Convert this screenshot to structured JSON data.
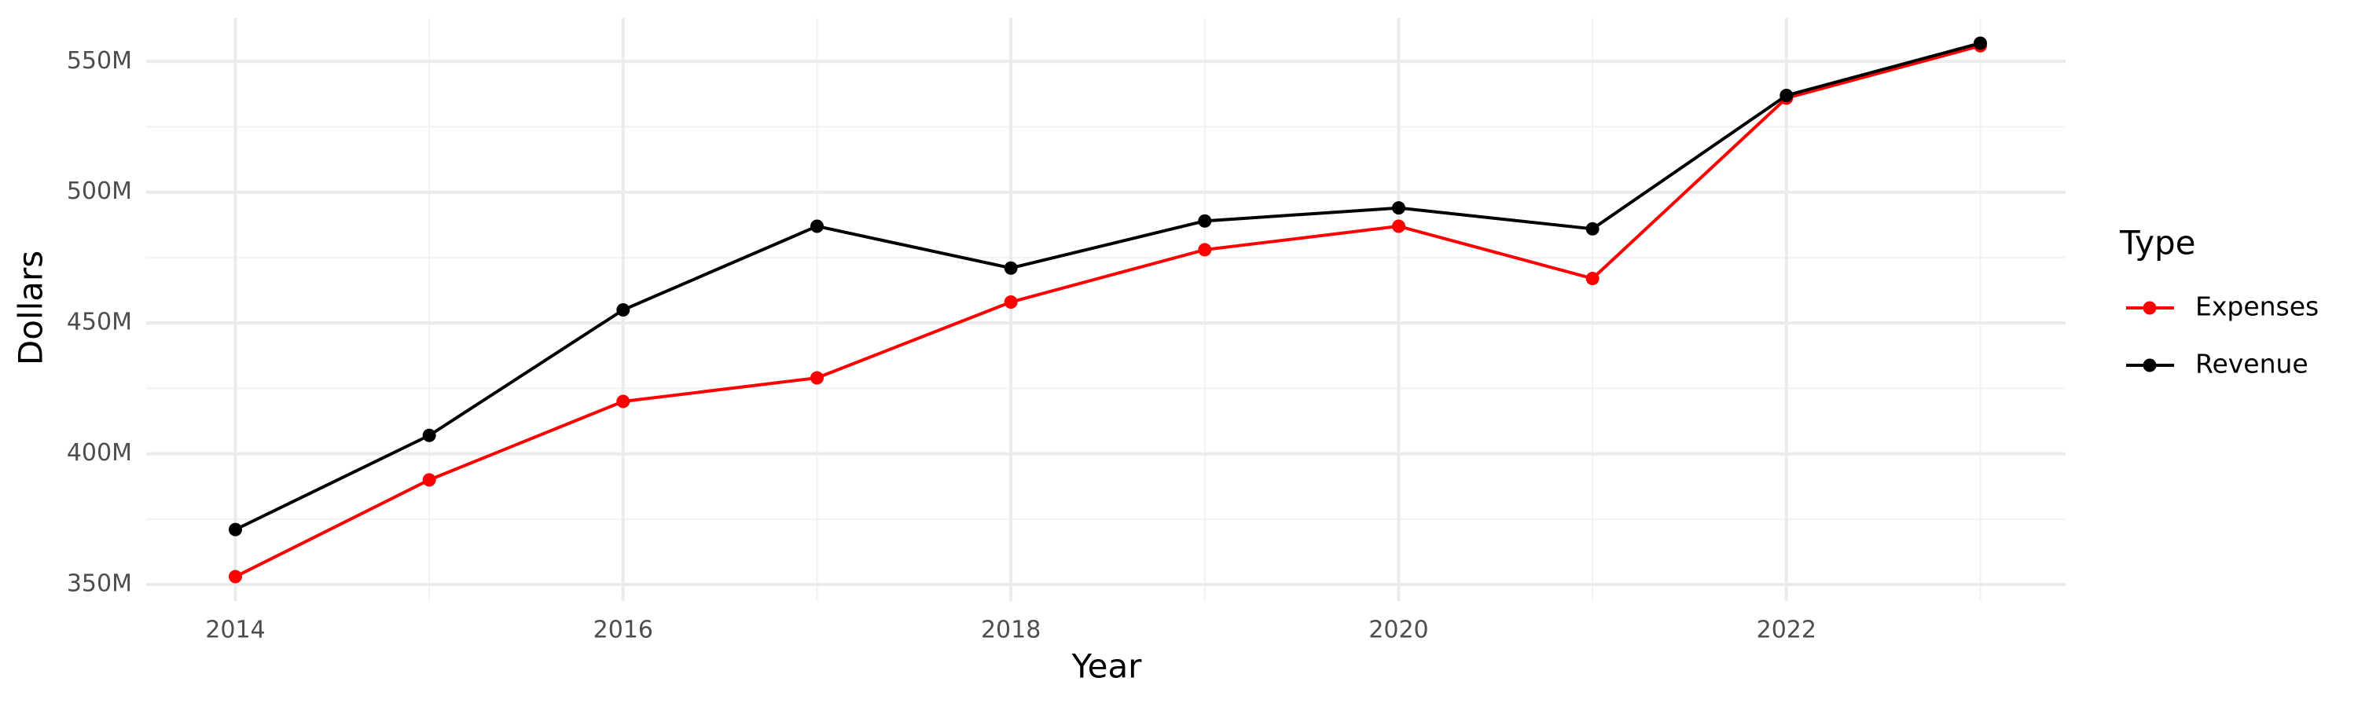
{
  "chart_data": {
    "type": "line",
    "x_label": "Year",
    "y_label": "Dollars",
    "legend_title": "Type",
    "legend_position": "right",
    "x": [
      2014,
      2015,
      2016,
      2017,
      2018,
      2019,
      2020,
      2021,
      2022,
      2023
    ],
    "series": [
      {
        "name": "Expenses",
        "color": "#ff0000",
        "values": [
          353,
          390,
          420,
          429,
          458,
          478,
          487,
          467,
          536,
          556
        ]
      },
      {
        "name": "Revenue",
        "color": "#000000",
        "values": [
          371,
          407,
          455,
          487,
          471,
          489,
          494,
          486,
          537,
          557
        ]
      }
    ],
    "xlim": [
      2013.54,
      2023.44
    ],
    "xticks": [
      2014,
      2016,
      2018,
      2020,
      2022
    ],
    "minor_xticks": [
      2015,
      2017,
      2019,
      2021,
      2023
    ],
    "ylim": [
      343.7,
      566.6
    ],
    "yticks": [
      {
        "value": 350,
        "label": "350M"
      },
      {
        "value": 400,
        "label": "400M"
      },
      {
        "value": 450,
        "label": "450M"
      },
      {
        "value": 500,
        "label": "500M"
      },
      {
        "value": 550,
        "label": "550M"
      }
    ],
    "minor_yticks": [
      375,
      425,
      475,
      525
    ],
    "grid": true
  }
}
